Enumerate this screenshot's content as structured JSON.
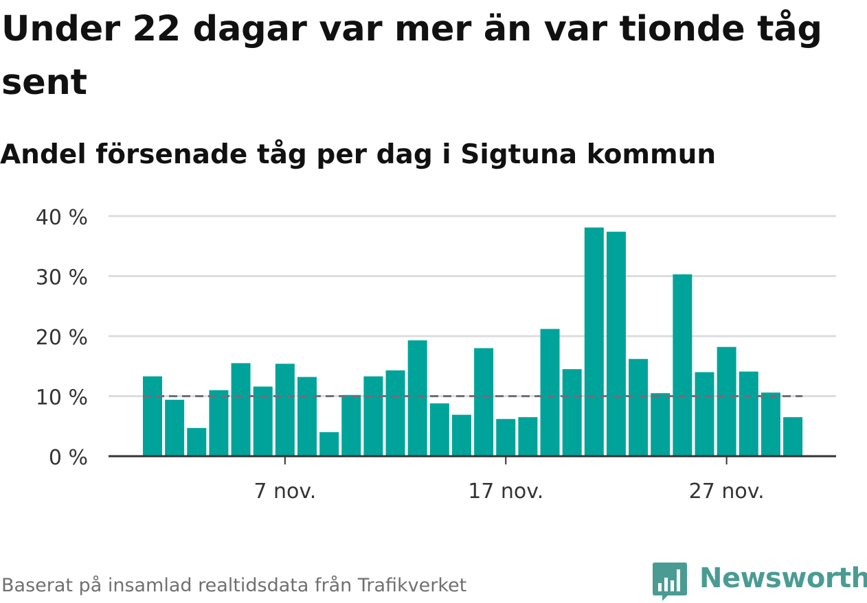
{
  "title": "Under 22 dagar var mer än var tionde tåg sent",
  "subtitle": "Andel försenade tåg per dag i Sigtuna kommun",
  "footer": "Baserat på insamlad realtidsdata från Trafikverket",
  "logo": {
    "text": "Newsworthy",
    "icon": "bar-chart-speech-bubble-icon",
    "color": "#4a9c93"
  },
  "colors": {
    "bar": "#00a39a",
    "reference_line": "#6e6e7a",
    "grid": "#dddddd",
    "axis": "#333333"
  },
  "chart_data": {
    "type": "bar",
    "x": [
      "1 nov.",
      "2 nov.",
      "3 nov.",
      "4 nov.",
      "5 nov.",
      "6 nov.",
      "7 nov.",
      "8 nov.",
      "9 nov.",
      "10 nov.",
      "11 nov.",
      "12 nov.",
      "13 nov.",
      "14 nov.",
      "15 nov.",
      "16 nov.",
      "17 nov.",
      "18 nov.",
      "19 nov.",
      "20 nov.",
      "21 nov.",
      "22 nov.",
      "23 nov.",
      "24 nov.",
      "25 nov.",
      "26 nov.",
      "27 nov.",
      "28 nov.",
      "29 nov.",
      "30 nov."
    ],
    "values": [
      13.3,
      9.4,
      4.7,
      11.0,
      15.5,
      11.6,
      15.4,
      13.2,
      4.0,
      10.2,
      13.3,
      14.3,
      19.3,
      8.8,
      6.9,
      18.0,
      6.2,
      6.5,
      21.2,
      14.5,
      38.1,
      37.4,
      16.2,
      10.5,
      30.3,
      14.0,
      18.2,
      14.1,
      10.6,
      6.5
    ],
    "ylim": [
      0,
      40
    ],
    "yticks": [
      0,
      10,
      20,
      30,
      40
    ],
    "ytick_labels": [
      "0 %",
      "10 %",
      "20 %",
      "30 %",
      "40 %"
    ],
    "xtick_labels": [
      "7 nov.",
      "17 nov.",
      "27 nov."
    ],
    "xtick_positions": [
      "7 nov.",
      "17 nov.",
      "27 nov."
    ],
    "reference_line": {
      "value": 10,
      "style": "dashed"
    },
    "grid": true,
    "unit": "%"
  }
}
